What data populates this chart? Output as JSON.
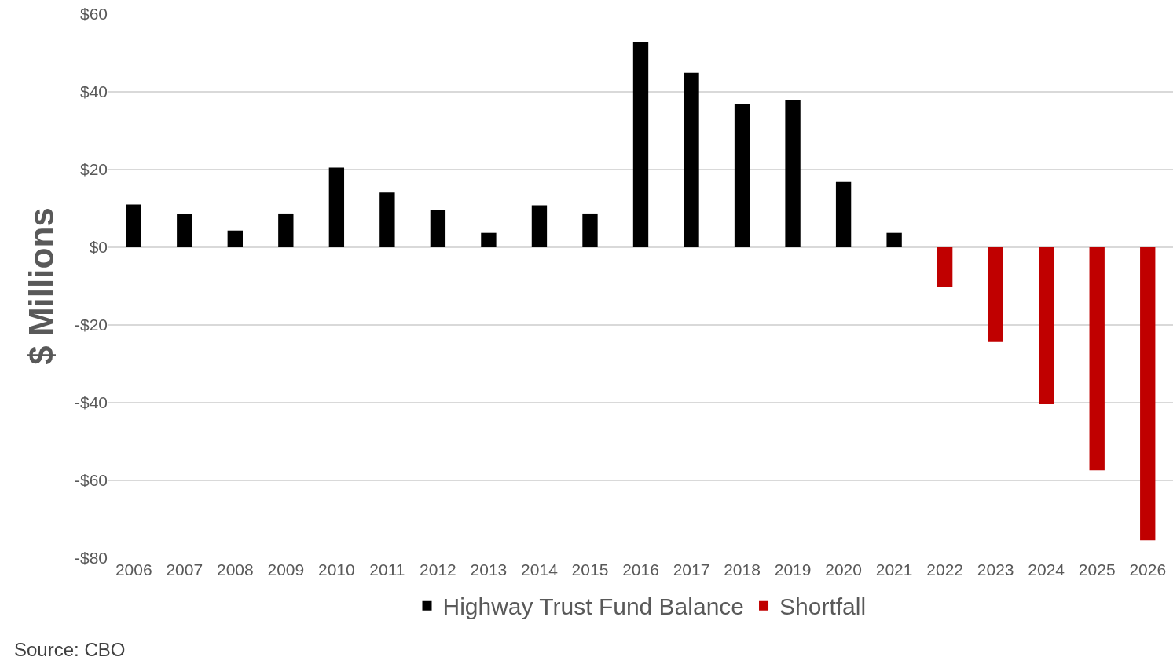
{
  "chart_data": {
    "type": "bar",
    "ylabel": "$ Millions",
    "categories": [
      "2006",
      "2007",
      "2008",
      "2009",
      "2010",
      "2011",
      "2012",
      "2013",
      "2014",
      "2015",
      "2016",
      "2017",
      "2018",
      "2019",
      "2020",
      "2021",
      "2022",
      "2023",
      "2024",
      "2025",
      "2026"
    ],
    "series": [
      {
        "name": "Highway Trust Fund Balance",
        "color": "#000000",
        "values": [
          11,
          8.5,
          4.3,
          8.7,
          20.5,
          14.1,
          9.7,
          3.7,
          10.8,
          8.7,
          52.8,
          44.9,
          36.9,
          37.9,
          16.8,
          3.7,
          null,
          null,
          null,
          null,
          null
        ]
      },
      {
        "name": "Shortfall",
        "color": "#c00000",
        "values": [
          null,
          null,
          null,
          null,
          null,
          null,
          null,
          null,
          null,
          null,
          null,
          null,
          null,
          null,
          null,
          null,
          -10.3,
          -24.4,
          -40.4,
          -57.4,
          -75.4
        ]
      }
    ],
    "ylim": [
      -80,
      60
    ],
    "yticks": [
      {
        "value": -80,
        "label": "-$80"
      },
      {
        "value": -60,
        "label": "-$60"
      },
      {
        "value": -40,
        "label": "-$40"
      },
      {
        "value": -20,
        "label": "-$20"
      },
      {
        "value": 0,
        "label": "$0"
      },
      {
        "value": 20,
        "label": "$20"
      },
      {
        "value": 40,
        "label": "$40"
      },
      {
        "value": 60,
        "label": "$60"
      }
    ],
    "grid": "y",
    "legend": "bottom",
    "annotations": [
      "Source: CBO"
    ]
  }
}
